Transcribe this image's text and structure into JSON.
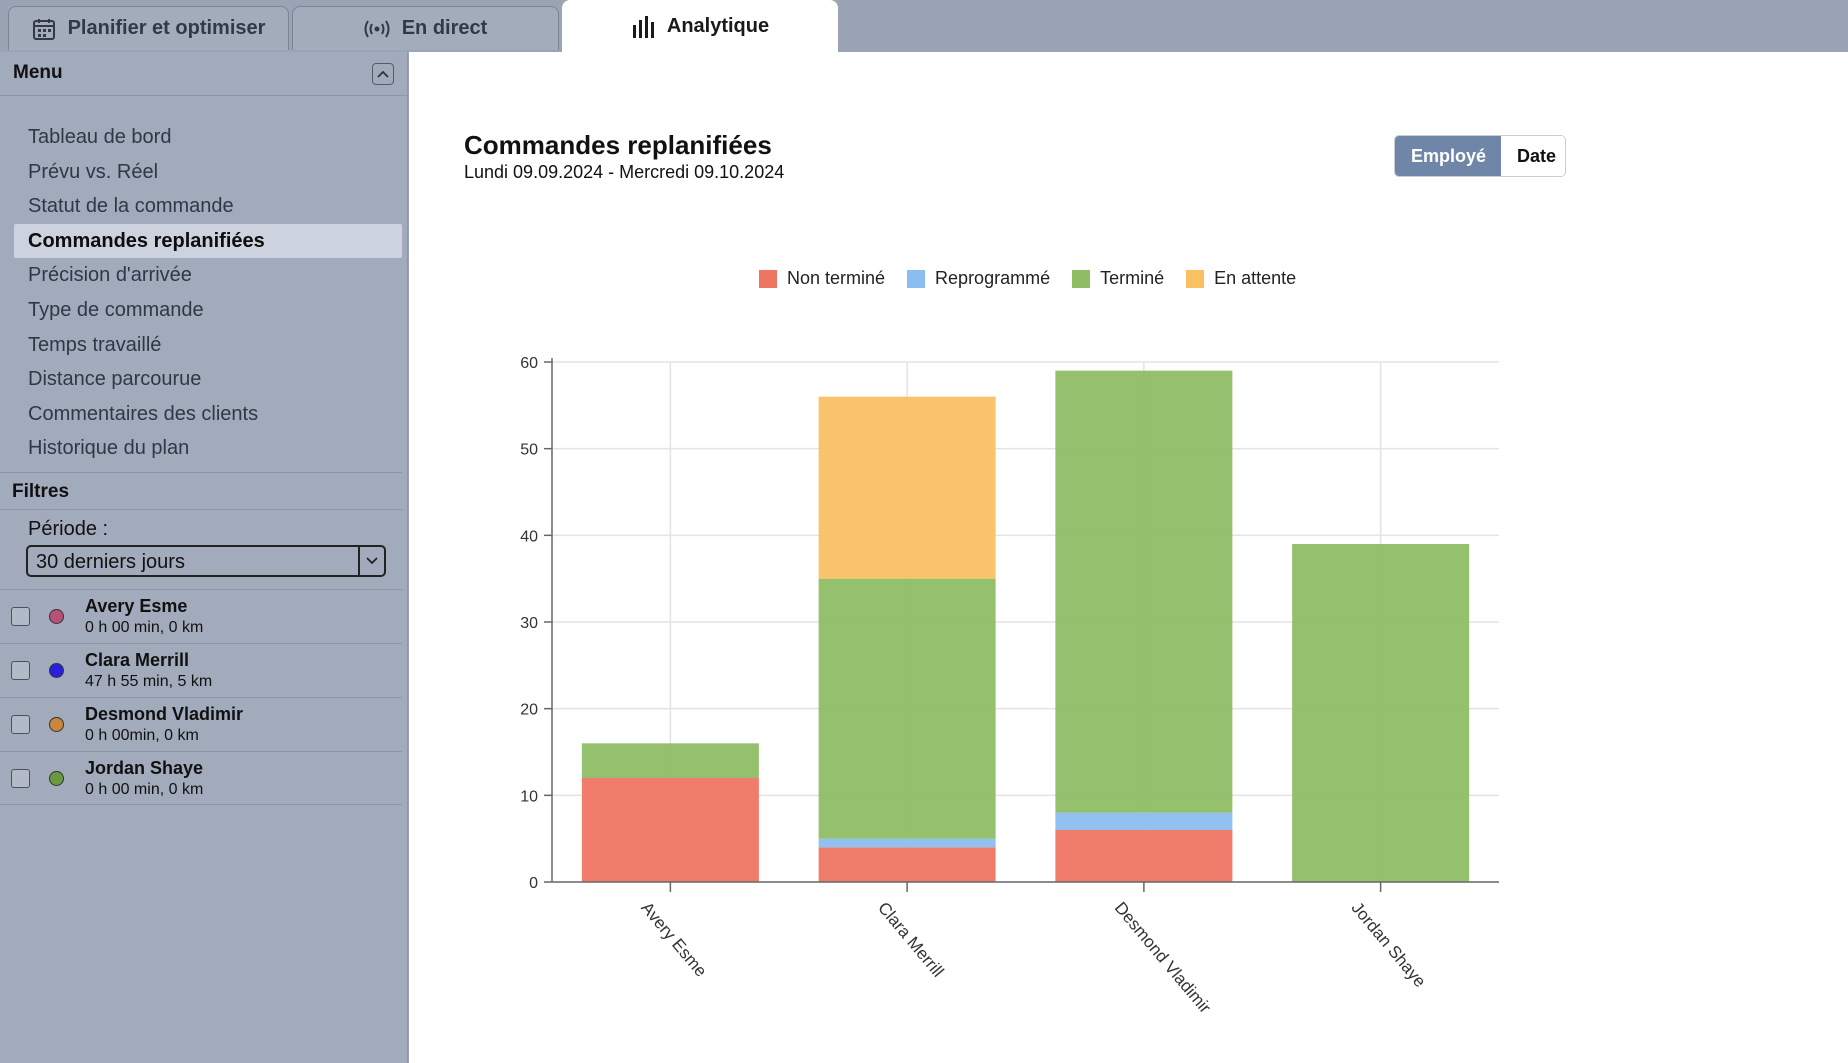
{
  "tabs": [
    {
      "label": "Planifier et optimiser",
      "icon": "calendar-icon"
    },
    {
      "label": "En direct",
      "icon": "broadcast-icon"
    },
    {
      "label": "Analytique",
      "icon": "bar-chart-icon"
    }
  ],
  "sidebar": {
    "menu_title": "Menu",
    "items": [
      {
        "label": "Tableau de bord"
      },
      {
        "label": "Prévu vs. Réel"
      },
      {
        "label": "Statut de la commande"
      },
      {
        "label": "Commandes replanifiées"
      },
      {
        "label": "Précision d'arrivée"
      },
      {
        "label": "Type de commande"
      },
      {
        "label": "Temps travaillé"
      },
      {
        "label": "Distance parcourue"
      },
      {
        "label": "Commentaires des clients"
      },
      {
        "label": "Historique du plan"
      }
    ],
    "filters_title": "Filtres",
    "period_label": "Période :",
    "period_value": "30 derniers jours",
    "employees": [
      {
        "name": "Avery Esme",
        "stats": "0 h 00 min, 0 km",
        "color": "#b8507a"
      },
      {
        "name": "Clara Merrill",
        "stats": "47 h 55 min, 5 km",
        "color": "#2a1ee0"
      },
      {
        "name": "Desmond Vladimir",
        "stats": "0 h 00min, 0 km",
        "color": "#c8873a"
      },
      {
        "name": "Jordan Shaye",
        "stats": "0 h 00 min, 0 km",
        "color": "#6a9a3c"
      }
    ]
  },
  "main": {
    "title": "Commandes replanifiées",
    "subtitle": "Lundi 09.09.2024 - Mercredi 09.10.2024",
    "toggle": {
      "employee": "Employé",
      "date": "Date"
    }
  },
  "colors": {
    "accent": "#6f86a8",
    "not_done": "#ef7563",
    "rescheduled": "#8bbef0",
    "done": "#8fbd65",
    "pending": "#f9c064"
  },
  "chart_data": {
    "type": "bar",
    "stacked": true,
    "categories": [
      "Avery Esme",
      "Clara Merrill",
      "Desmond Vladimir",
      "Jordan Shaye"
    ],
    "series": [
      {
        "name": "Non terminé",
        "color": "#ef7563",
        "values": [
          12,
          4,
          6,
          0
        ]
      },
      {
        "name": "Reprogrammé",
        "color": "#8bbef0",
        "values": [
          0,
          1,
          2,
          0
        ]
      },
      {
        "name": "Terminé",
        "color": "#8fbd65",
        "values": [
          4,
          30,
          51,
          39
        ]
      },
      {
        "name": "En attente",
        "color": "#f9c064",
        "values": [
          0,
          21,
          0,
          0
        ]
      }
    ],
    "ylim": [
      0,
      60
    ],
    "yticks": [
      0,
      10,
      20,
      30,
      40,
      50,
      60
    ],
    "grid": true,
    "legend": "top"
  }
}
